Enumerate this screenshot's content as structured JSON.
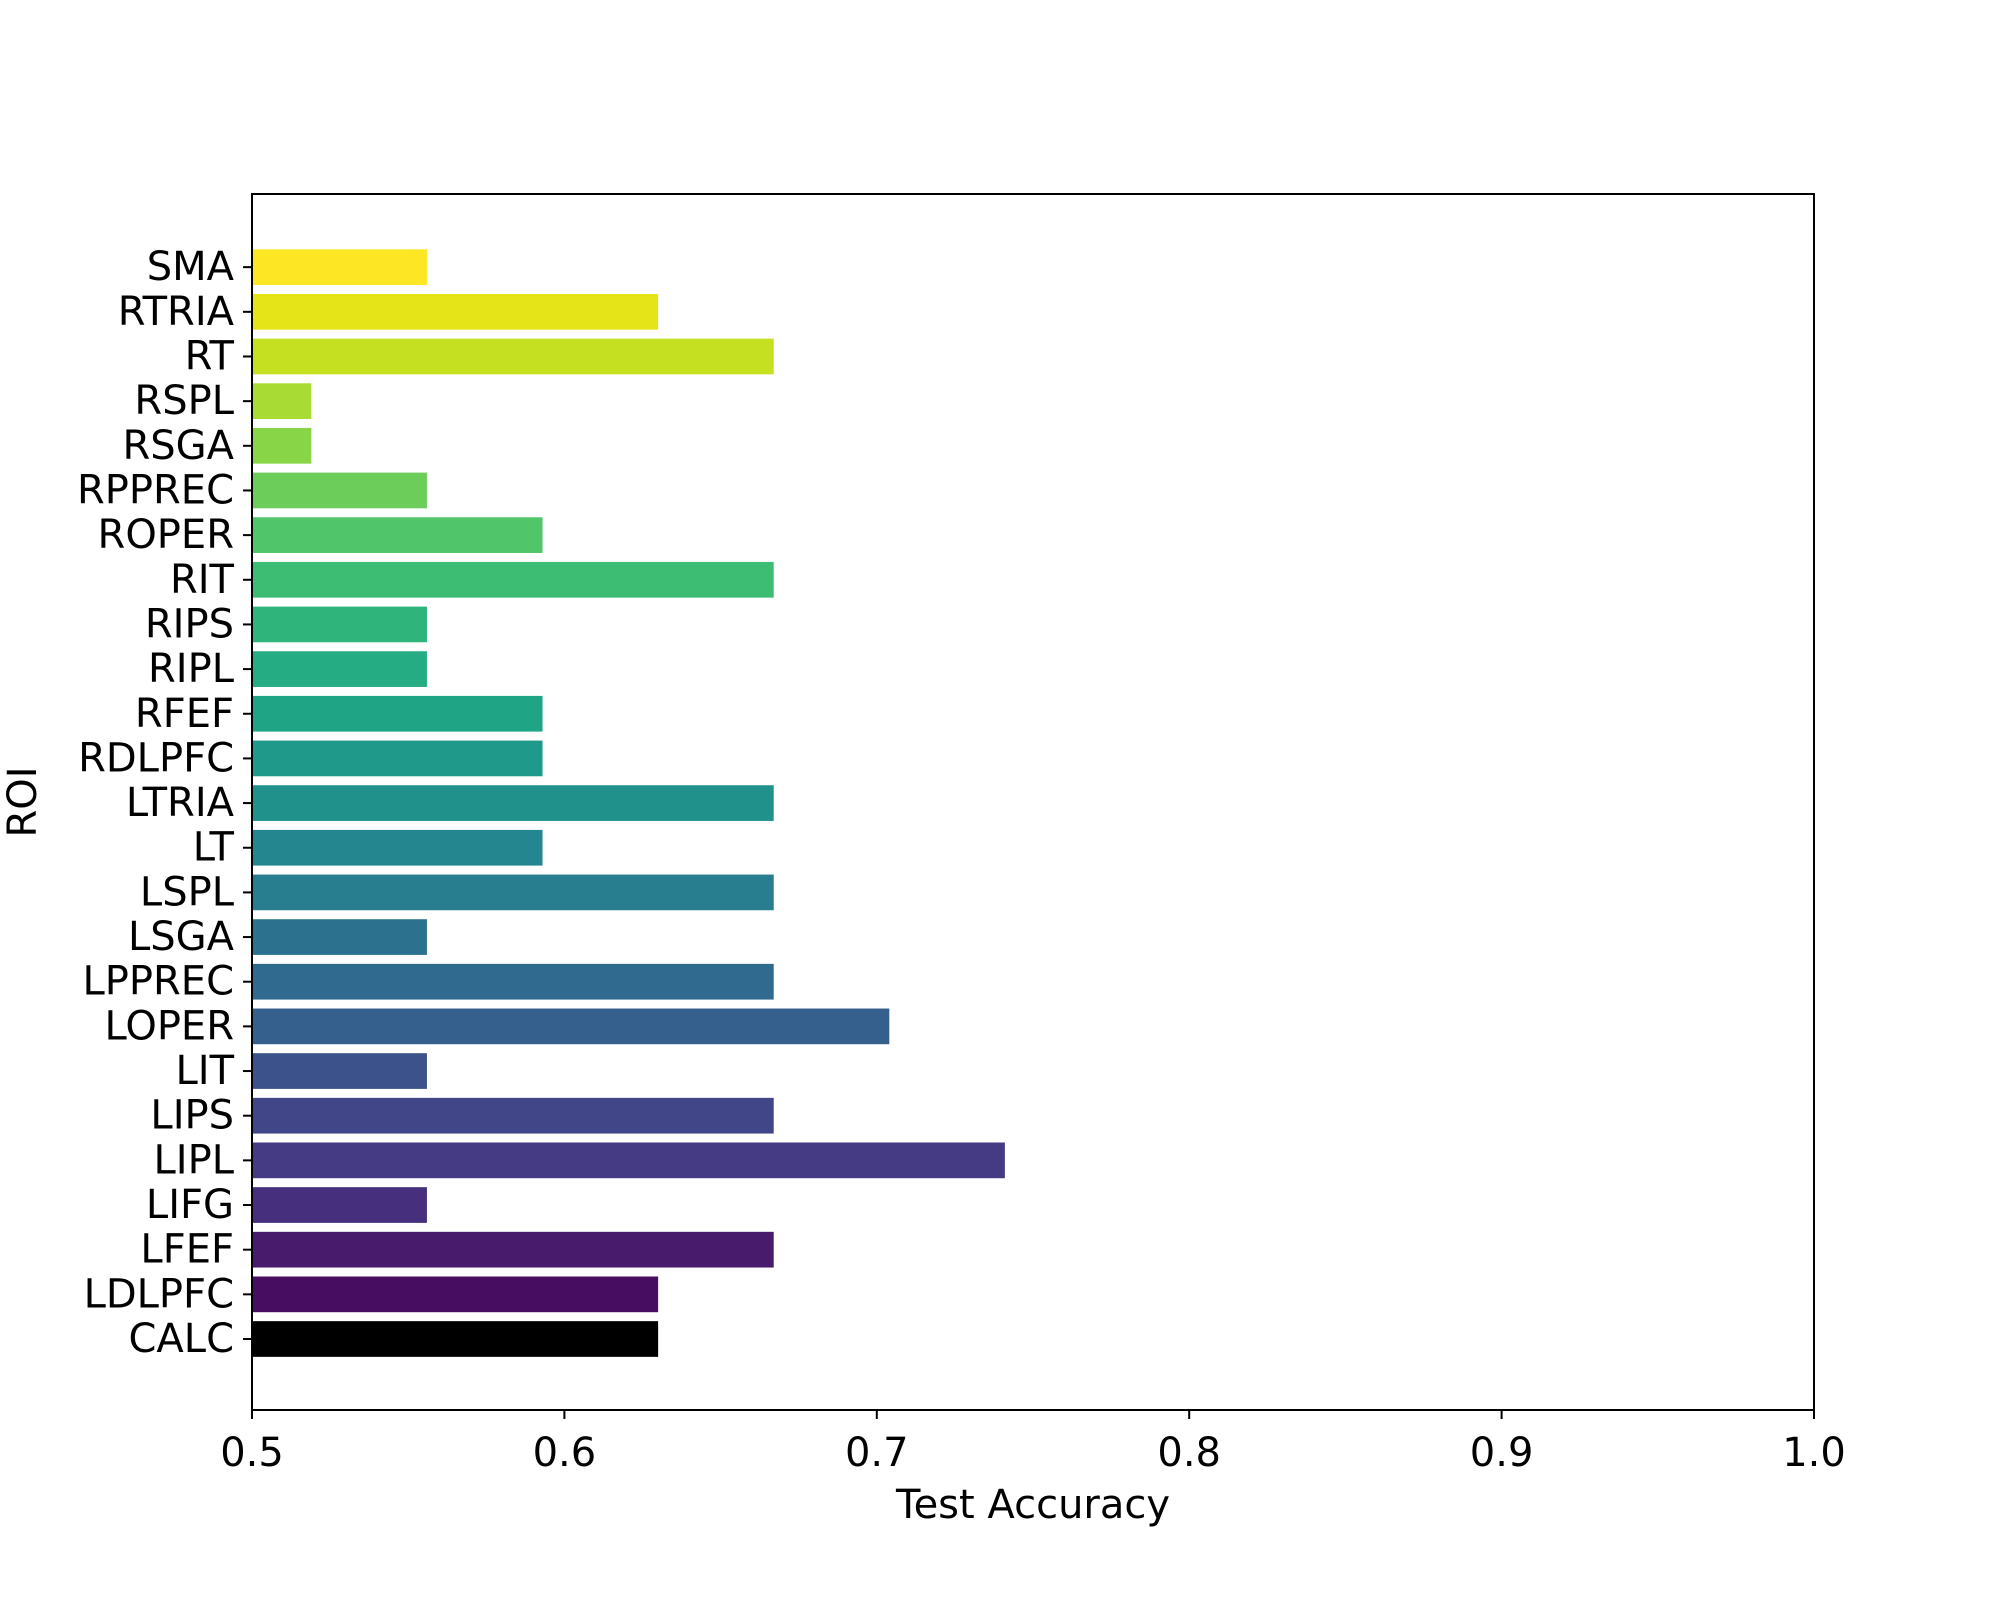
{
  "chart_data": {
    "type": "bar",
    "orientation": "horizontal",
    "title": "",
    "xlabel": "Test Accuracy",
    "ylabel": "ROI",
    "xlim": [
      0.5,
      1.0
    ],
    "xticks": [
      "0.5",
      "0.6",
      "0.7",
      "0.8",
      "0.9",
      "1.0"
    ],
    "grid": false,
    "colormap": "viridis",
    "categories": [
      "CALC",
      "LDLPFC",
      "LFEF",
      "LIFG",
      "LIPL",
      "LIPS",
      "LIT",
      "LOPER",
      "LPPREC",
      "LSGA",
      "LSPL",
      "LT",
      "LTRIA",
      "RDLPFC",
      "RFEF",
      "RIPL",
      "RIPS",
      "RIT",
      "ROPER",
      "RPPREC",
      "RSGA",
      "RSPL",
      "RT",
      "RTRIA",
      "SMA"
    ],
    "values": [
      0.63,
      0.63,
      0.667,
      0.556,
      0.741,
      0.667,
      0.556,
      0.704,
      0.667,
      0.556,
      0.667,
      0.593,
      0.667,
      0.593,
      0.593,
      0.556,
      0.556,
      0.667,
      0.593,
      0.556,
      0.519,
      0.519,
      0.667,
      0.63,
      0.556
    ],
    "colors": [
      "#000000",
      "#470d60",
      "#481b6d",
      "#46307e",
      "#443b84",
      "#404688",
      "#3b528b",
      "#355f8d",
      "#306a8e",
      "#2c728e",
      "#287d8e",
      "#24868e",
      "#21918c",
      "#1f9a8a",
      "#20a486",
      "#25ac82",
      "#2fb47c",
      "#3dbc74",
      "#51c56a",
      "#6ccd5a",
      "#89d548",
      "#a8db34",
      "#c5e021",
      "#e5e419",
      "#fde725"
    ]
  }
}
